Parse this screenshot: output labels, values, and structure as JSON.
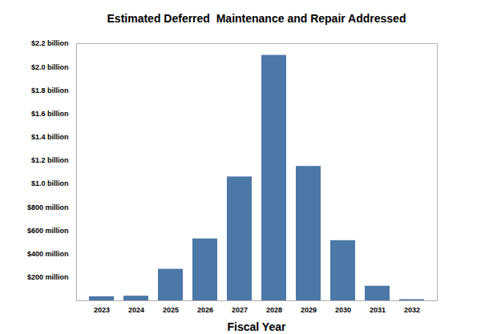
{
  "chart_data": {
    "type": "bar",
    "title": "Estimated Deferred  Maintenance and Repair Addressed",
    "x_label": "Fiscal Year",
    "categories": [
      "2023",
      "2024",
      "2025",
      "2026",
      "2027",
      "2028",
      "2029",
      "2030",
      "2031",
      "2032"
    ],
    "values": [
      35,
      40,
      270,
      530,
      1060,
      2100,
      1150,
      515,
      125,
      10
    ],
    "color": "#4c78a8",
    "ylim": [
      0,
      2200
    ],
    "yticks": [
      {
        "value": 200,
        "label": "$200 million"
      },
      {
        "value": 400,
        "label": "$400 million"
      },
      {
        "value": 600,
        "label": "$600 million"
      },
      {
        "value": 800,
        "label": "$800 million"
      },
      {
        "value": 1000,
        "label": "$1.0 billion"
      },
      {
        "value": 1200,
        "label": "$1.2 billion"
      },
      {
        "value": 1400,
        "label": "$1.4 billion"
      },
      {
        "value": 1600,
        "label": "$1.6 billion"
      },
      {
        "value": 1800,
        "label": "$1.8 billion"
      },
      {
        "value": 2000,
        "label": "$2.0 billion"
      },
      {
        "value": 2200,
        "label": "$2.2 billion"
      }
    ],
    "grid": false
  }
}
